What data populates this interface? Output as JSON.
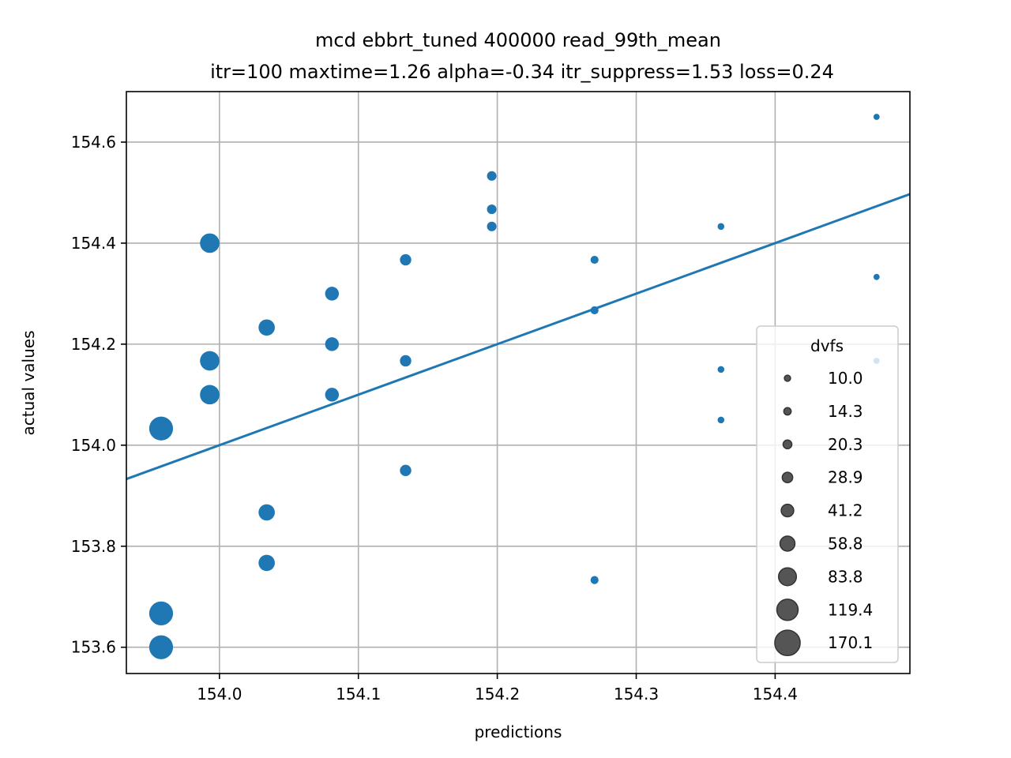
{
  "chart_data": {
    "type": "scatter",
    "title_line1": "mcd ebbrt_tuned 400000 read_99th_mean",
    "title_line2": "itr=100 maxtime=1.26 alpha=-0.34 itr_suppress=1.53 loss=0.24",
    "xlabel": "predictions",
    "ylabel": "actual values",
    "xlim": [
      153.933,
      154.497
    ],
    "ylim": [
      153.548,
      154.7
    ],
    "x_ticks": [
      154.0,
      154.1,
      154.2,
      154.3,
      154.4
    ],
    "x_tick_labels": [
      "154.0",
      "154.1",
      "154.2",
      "154.3",
      "154.4"
    ],
    "y_ticks": [
      153.6,
      153.8,
      154.0,
      154.2,
      154.4,
      154.6
    ],
    "y_tick_labels": [
      "153.6",
      "153.8",
      "154.0",
      "154.2",
      "154.4",
      "154.6"
    ],
    "grid": true,
    "point_color": "#1f77b4",
    "line_color": "#1f77b4",
    "reference_line": {
      "description": "y = x",
      "from": [
        153.933,
        153.933
      ],
      "to": [
        154.497,
        154.497
      ]
    },
    "points": [
      {
        "x": 154.473,
        "y": 154.65,
        "dvfs": 10.0
      },
      {
        "x": 154.473,
        "y": 154.333,
        "dvfs": 10.0
      },
      {
        "x": 154.473,
        "y": 154.167,
        "dvfs": 10.0
      },
      {
        "x": 154.361,
        "y": 154.433,
        "dvfs": 12.0
      },
      {
        "x": 154.361,
        "y": 154.15,
        "dvfs": 12.0
      },
      {
        "x": 154.361,
        "y": 154.05,
        "dvfs": 12.0
      },
      {
        "x": 154.27,
        "y": 154.367,
        "dvfs": 17.0
      },
      {
        "x": 154.27,
        "y": 154.267,
        "dvfs": 17.0
      },
      {
        "x": 154.27,
        "y": 153.733,
        "dvfs": 17.0
      },
      {
        "x": 154.196,
        "y": 154.533,
        "dvfs": 24.0
      },
      {
        "x": 154.196,
        "y": 154.467,
        "dvfs": 24.0
      },
      {
        "x": 154.196,
        "y": 154.433,
        "dvfs": 24.0
      },
      {
        "x": 154.134,
        "y": 154.367,
        "dvfs": 34.0
      },
      {
        "x": 154.134,
        "y": 154.167,
        "dvfs": 34.0
      },
      {
        "x": 154.134,
        "y": 153.95,
        "dvfs": 34.0
      },
      {
        "x": 154.081,
        "y": 154.3,
        "dvfs": 50.0
      },
      {
        "x": 154.081,
        "y": 154.2,
        "dvfs": 50.0
      },
      {
        "x": 154.081,
        "y": 154.1,
        "dvfs": 50.0
      },
      {
        "x": 154.034,
        "y": 154.233,
        "dvfs": 70.0
      },
      {
        "x": 154.034,
        "y": 153.867,
        "dvfs": 70.0
      },
      {
        "x": 154.034,
        "y": 153.767,
        "dvfs": 70.0
      },
      {
        "x": 153.993,
        "y": 154.4,
        "dvfs": 100.0
      },
      {
        "x": 153.993,
        "y": 154.167,
        "dvfs": 100.0
      },
      {
        "x": 153.993,
        "y": 154.1,
        "dvfs": 100.0
      },
      {
        "x": 153.958,
        "y": 154.033,
        "dvfs": 150.0
      },
      {
        "x": 153.958,
        "y": 153.667,
        "dvfs": 150.0
      },
      {
        "x": 153.958,
        "y": 153.6,
        "dvfs": 150.0
      }
    ],
    "legend": {
      "title": "dvfs",
      "placement": "lower right",
      "entries": [
        {
          "label": "10.0",
          "value": 10.0
        },
        {
          "label": "14.3",
          "value": 14.3
        },
        {
          "label": "20.3",
          "value": 20.3
        },
        {
          "label": "28.9",
          "value": 28.9
        },
        {
          "label": "41.2",
          "value": 41.2
        },
        {
          "label": "58.8",
          "value": 58.8
        },
        {
          "label": "83.8",
          "value": 83.8
        },
        {
          "label": "119.4",
          "value": 119.4
        },
        {
          "label": "170.1",
          "value": 170.1
        }
      ],
      "marker_color": "#555555"
    }
  }
}
